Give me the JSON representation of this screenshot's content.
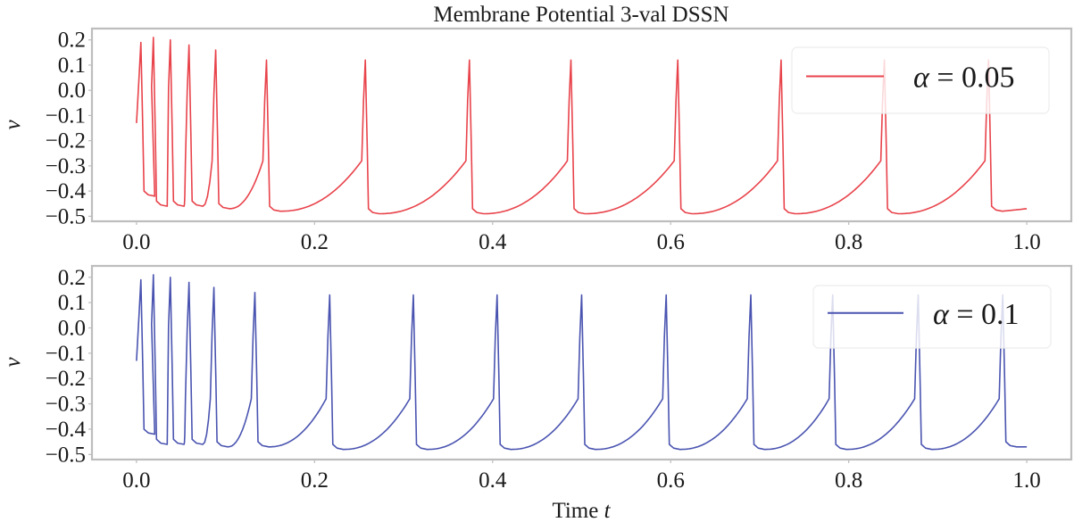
{
  "chart_data": {
    "type": "line",
    "title": "Membrane Potential 3-val DSSN",
    "xlabel": "Time",
    "xlabel_var": "t",
    "xlim": [
      -0.05,
      1.05
    ],
    "x_ticks": [
      "0.0",
      "0.2",
      "0.4",
      "0.6",
      "0.8",
      "1.0"
    ],
    "x_tick_values": [
      0.0,
      0.2,
      0.4,
      0.6,
      0.8,
      1.0
    ],
    "subplots": [
      {
        "ylabel": "v",
        "ylim": [
          -0.52,
          0.245
        ],
        "y_ticks": [
          "0.2",
          "0.1",
          "0.0",
          "−0.1",
          "−0.2",
          "−0.3",
          "−0.4",
          "−0.5"
        ],
        "y_tick_values": [
          0.2,
          0.1,
          0.0,
          -0.1,
          -0.2,
          -0.3,
          -0.4,
          -0.5
        ],
        "legend": {
          "label_symbol": "α",
          "label_eq": " = ",
          "label_value": "0.05",
          "position": "upper-right"
        },
        "series": {
          "name": "α = 0.05",
          "color": "#e8434b",
          "t_start": 0.0,
          "t_end": 1.0,
          "v_start": -0.13,
          "spike_times": [
            0.005,
            0.019,
            0.038,
            0.059,
            0.089,
            0.146,
            0.257,
            0.374,
            0.488,
            0.608,
            0.724,
            0.84,
            0.957
          ],
          "spike_peaks": [
            0.19,
            0.21,
            0.2,
            0.18,
            0.16,
            0.12,
            0.12,
            0.12,
            0.12,
            0.12,
            0.12,
            0.12,
            0.12
          ],
          "troughs": [
            -0.42,
            -0.46,
            -0.46,
            -0.46,
            -0.47,
            -0.48,
            -0.49,
            -0.49,
            -0.49,
            -0.49,
            -0.49,
            -0.49,
            -0.48
          ],
          "v_end": -0.47
        }
      },
      {
        "ylabel": "v",
        "ylim": [
          -0.52,
          0.245
        ],
        "y_ticks": [
          "0.2",
          "0.1",
          "0.0",
          "−0.1",
          "−0.2",
          "−0.3",
          "−0.4",
          "−0.5"
        ],
        "y_tick_values": [
          0.2,
          0.1,
          0.0,
          -0.1,
          -0.2,
          -0.3,
          -0.4,
          -0.5
        ],
        "legend": {
          "label_symbol": "α",
          "label_eq": " = ",
          "label_value": "0.1",
          "position": "upper-right"
        },
        "series": {
          "name": "α = 0.1",
          "color": "#4a54b0",
          "t_start": 0.0,
          "t_end": 1.0,
          "v_start": -0.13,
          "spike_times": [
            0.005,
            0.019,
            0.038,
            0.059,
            0.087,
            0.133,
            0.217,
            0.311,
            0.405,
            0.5,
            0.595,
            0.69,
            0.782,
            0.878,
            0.973
          ],
          "spike_peaks": [
            0.19,
            0.21,
            0.2,
            0.18,
            0.16,
            0.14,
            0.13,
            0.13,
            0.13,
            0.13,
            0.13,
            0.13,
            0.13,
            0.13,
            0.13
          ],
          "troughs": [
            -0.42,
            -0.46,
            -0.46,
            -0.46,
            -0.47,
            -0.47,
            -0.48,
            -0.48,
            -0.48,
            -0.48,
            -0.48,
            -0.48,
            -0.48,
            -0.48,
            -0.47
          ],
          "v_end": -0.47
        }
      }
    ]
  }
}
